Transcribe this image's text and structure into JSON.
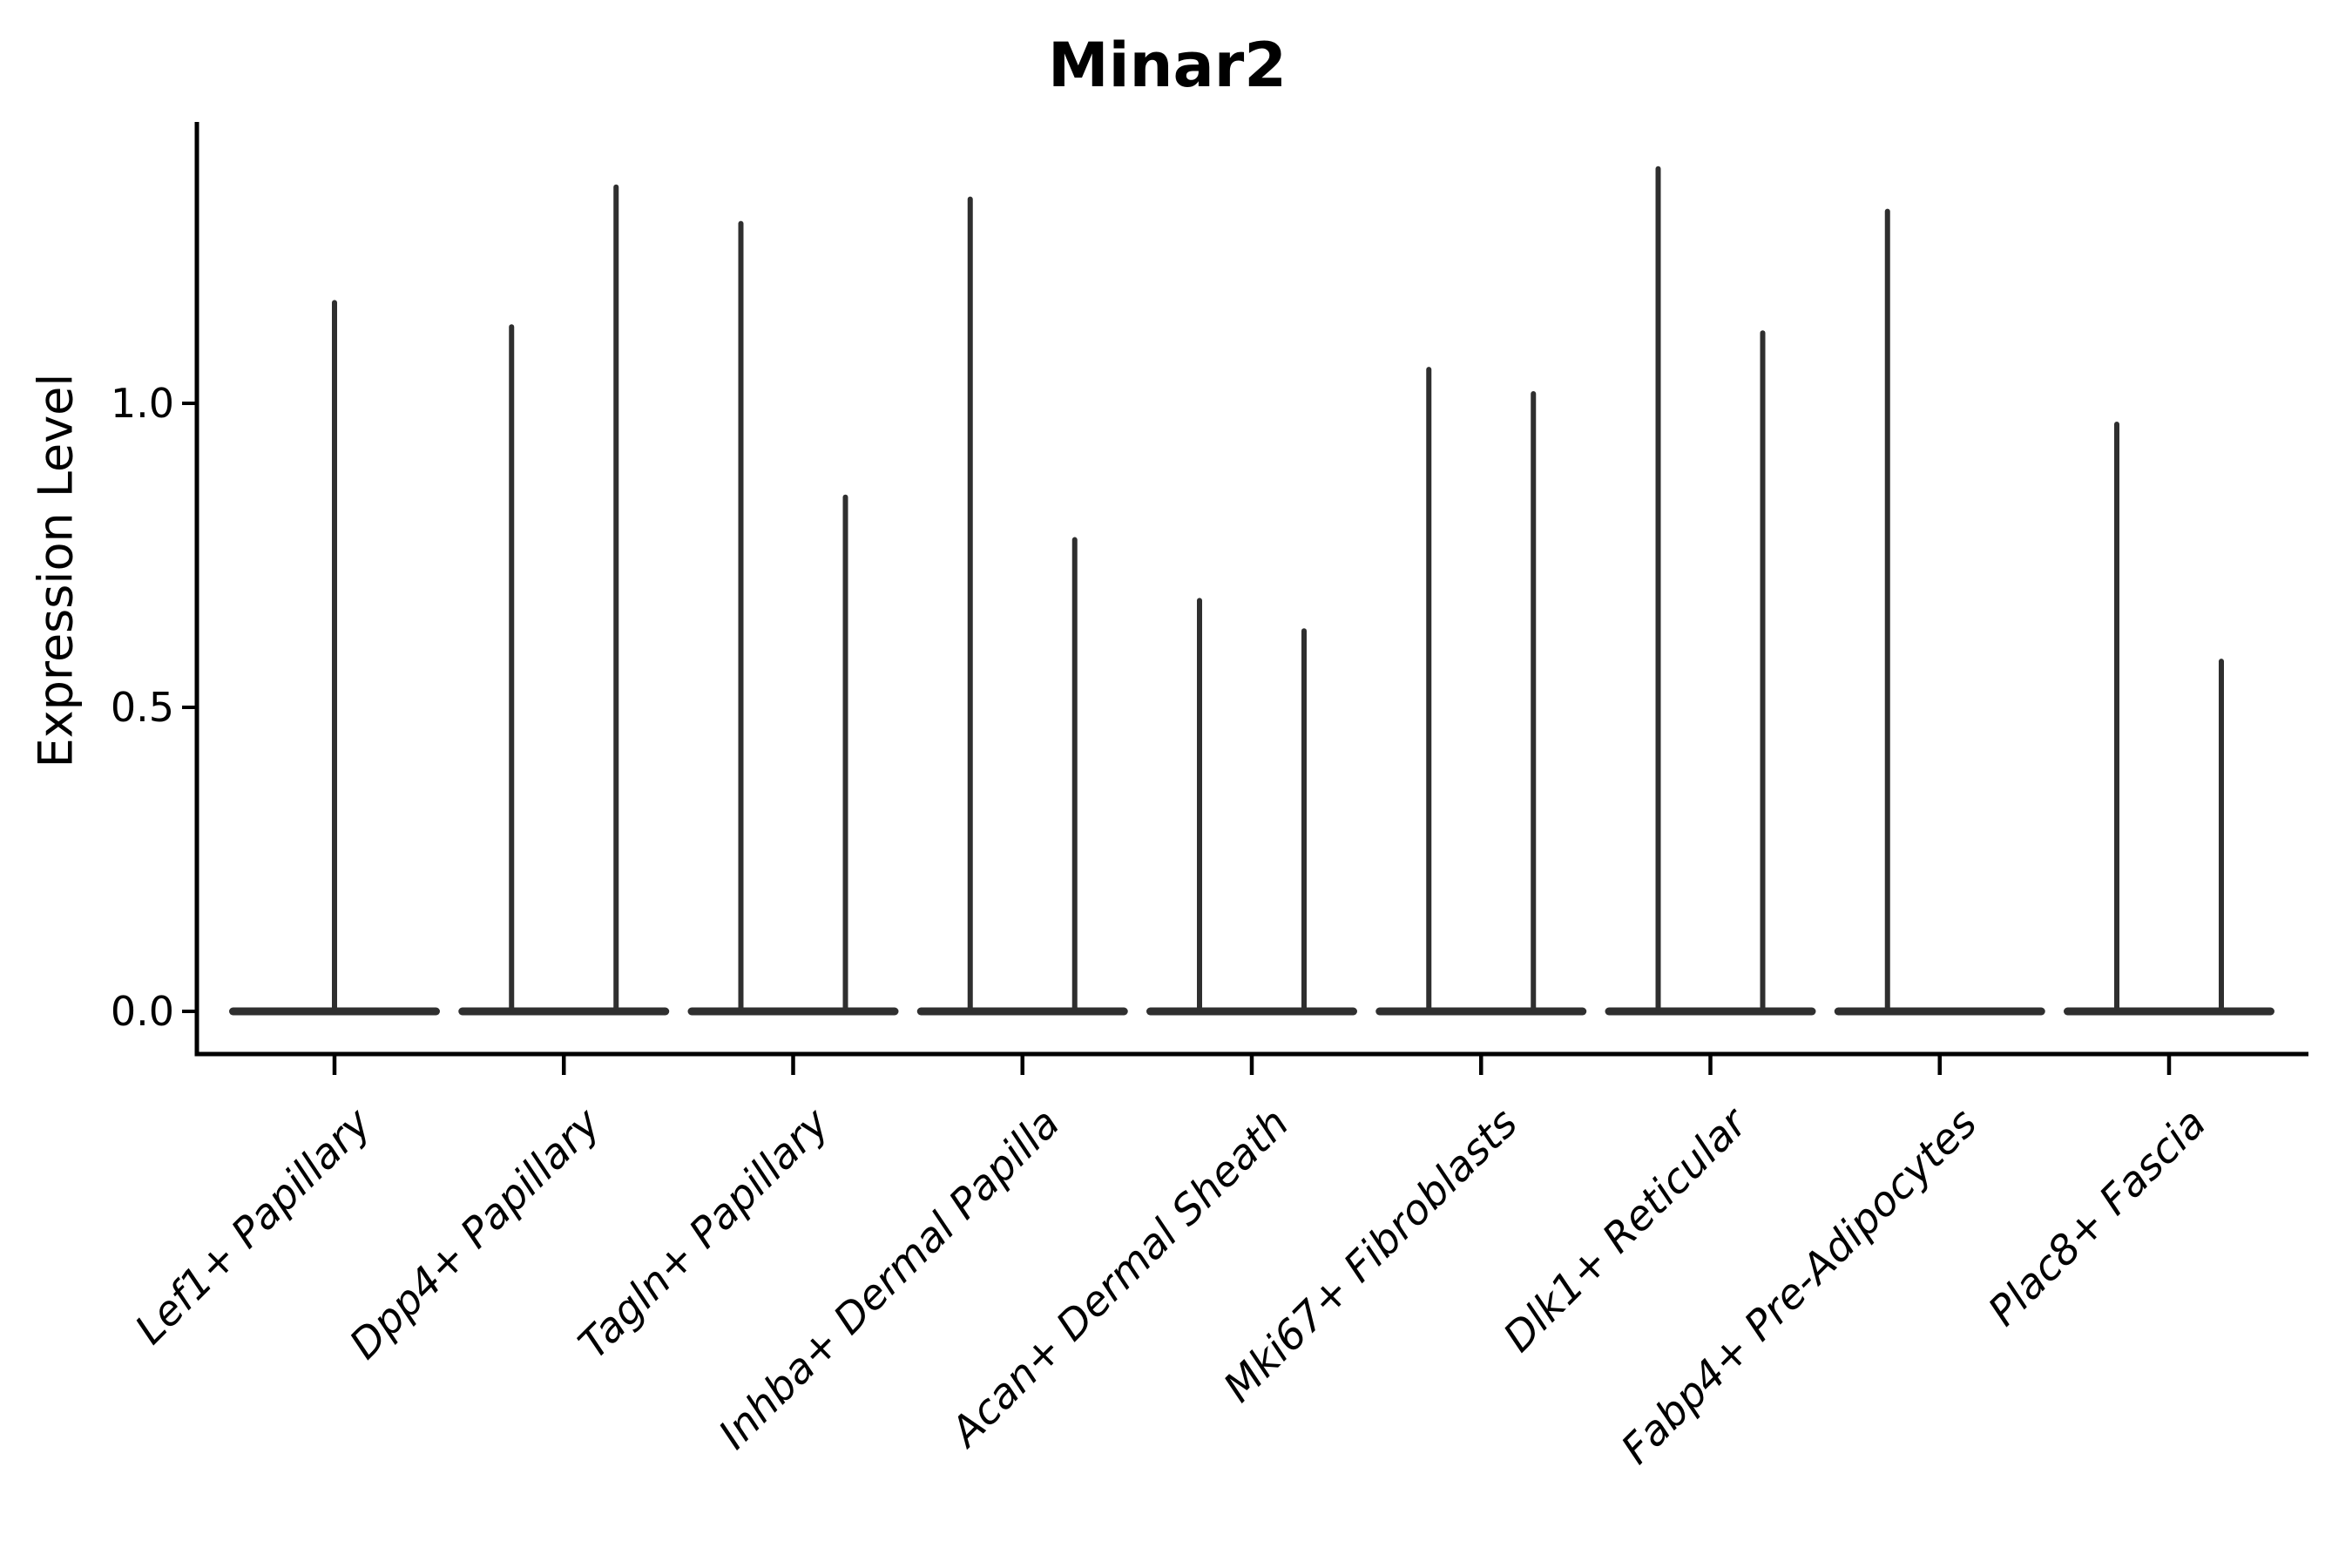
{
  "figure": {
    "background": "#ffffff"
  },
  "chart_data": {
    "type": "violin",
    "title": "Minar2",
    "ylabel": "Expression Level",
    "xlabel": "",
    "legend": "none",
    "grid": false,
    "ylim": [
      -0.07,
      1.47
    ],
    "yticks": [
      {
        "label": "0.0",
        "value": 0.0
      },
      {
        "label": "0.5",
        "value": 0.5
      },
      {
        "label": "1.0",
        "value": 1.0
      }
    ],
    "baseline_value": 0.0,
    "style": {
      "violin_color": "#2f2f2f",
      "axis_color": "#000000",
      "text_color": "#000000",
      "background": "#ffffff"
    },
    "clusters": [
      {
        "label": "Lef1+ Papillary",
        "violins": [
          {
            "position": "center",
            "max_expression": 1.17
          }
        ]
      },
      {
        "label": "Dpp4+ Papillary",
        "violins": [
          {
            "position": "left",
            "max_expression": 1.13
          },
          {
            "position": "right",
            "max_expression": 1.36
          }
        ]
      },
      {
        "label": "Tagln+ Papillary",
        "violins": [
          {
            "position": "left",
            "max_expression": 1.3
          },
          {
            "position": "right",
            "max_expression": 0.85
          }
        ]
      },
      {
        "label": "Inhba+ Dermal Papilla",
        "violins": [
          {
            "position": "left",
            "max_expression": 1.34
          },
          {
            "position": "right",
            "max_expression": 0.78
          }
        ]
      },
      {
        "label": "Acan+ Dermal Sheath",
        "violins": [
          {
            "position": "left",
            "max_expression": 0.68
          },
          {
            "position": "right",
            "max_expression": 0.63
          }
        ]
      },
      {
        "label": "Mki67+ Fibroblasts",
        "violins": [
          {
            "position": "left",
            "max_expression": 1.06
          },
          {
            "position": "right",
            "max_expression": 1.02
          }
        ]
      },
      {
        "label": "Dlk1+ Reticular",
        "violins": [
          {
            "position": "left",
            "max_expression": 1.39
          },
          {
            "position": "right",
            "max_expression": 1.12
          }
        ]
      },
      {
        "label": "Fabp4+ Pre-Adipocytes",
        "violins": [
          {
            "position": "left",
            "max_expression": 1.32
          }
        ]
      },
      {
        "label": "Plac8+ Fascia",
        "violins": [
          {
            "position": "left",
            "max_expression": 0.97
          },
          {
            "position": "right",
            "max_expression": 0.58
          }
        ]
      }
    ]
  }
}
